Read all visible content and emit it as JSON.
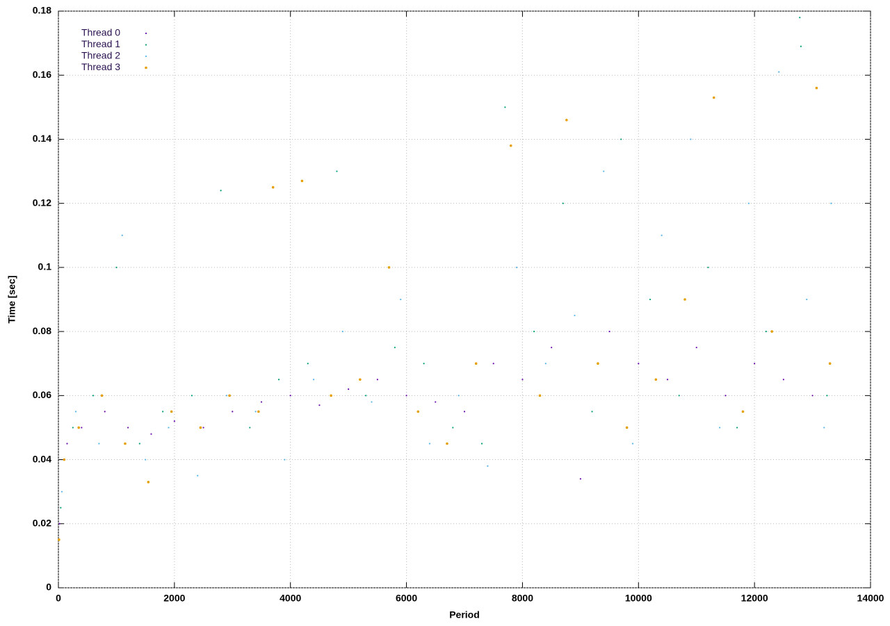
{
  "chart_data": {
    "type": "scatter",
    "xlabel": "Period",
    "ylabel": "Time [sec]",
    "xlim": [
      0,
      14000
    ],
    "ylim": [
      0,
      0.18
    ],
    "xticks": [
      0,
      2000,
      4000,
      6000,
      8000,
      10000,
      12000,
      14000
    ],
    "yticks": [
      0,
      0.02,
      0.04,
      0.06,
      0.08,
      0.1,
      0.12,
      0.14,
      0.16,
      0.18
    ],
    "grid": true,
    "legend": "top-left",
    "series": [
      {
        "name": "Thread 0",
        "color": "#6a0dad",
        "x": [
          20,
          150,
          400,
          800,
          1200,
          1600,
          2000,
          2500,
          3000,
          3500,
          4000,
          4500,
          5000,
          5500,
          6000,
          6500,
          7000,
          7500,
          8000,
          8500,
          9000,
          9500,
          10000,
          10500,
          11000,
          11500,
          12000,
          12500,
          13000,
          13300
        ],
        "y": [
          0.02,
          0.045,
          0.05,
          0.055,
          0.05,
          0.048,
          0.052,
          0.05,
          0.055,
          0.058,
          0.06,
          0.057,
          0.062,
          0.065,
          0.06,
          0.058,
          0.055,
          0.07,
          0.065,
          0.075,
          0.034,
          0.08,
          0.07,
          0.065,
          0.075,
          0.06,
          0.07,
          0.065,
          0.06,
          0.07
        ]
      },
      {
        "name": "Thread 1",
        "color": "#009e73",
        "x": [
          40,
          250,
          600,
          1000,
          1400,
          1800,
          2300,
          2800,
          3300,
          3800,
          4300,
          4800,
          5300,
          5800,
          6300,
          6800,
          7300,
          7700,
          8200,
          8700,
          9200,
          9700,
          10200,
          10700,
          11200,
          11700,
          12200,
          12780,
          12800,
          13250
        ],
        "y": [
          0.025,
          0.05,
          0.06,
          0.1,
          0.045,
          0.055,
          0.06,
          0.124,
          0.05,
          0.065,
          0.07,
          0.13,
          0.06,
          0.075,
          0.07,
          0.05,
          0.045,
          0.15,
          0.08,
          0.12,
          0.055,
          0.14,
          0.09,
          0.06,
          0.1,
          0.05,
          0.08,
          0.178,
          0.169,
          0.06
        ]
      },
      {
        "name": "Thread 2",
        "color": "#56b4e9",
        "x": [
          60,
          300,
          700,
          1100,
          1500,
          1900,
          2400,
          2900,
          3400,
          3900,
          4400,
          4900,
          5400,
          5900,
          6400,
          6900,
          7400,
          7900,
          8400,
          8900,
          9400,
          9900,
          10400,
          10900,
          11400,
          11900,
          12420,
          12900,
          13200,
          13320
        ],
        "y": [
          0.03,
          0.055,
          0.045,
          0.11,
          0.04,
          0.05,
          0.035,
          0.06,
          0.055,
          0.04,
          0.065,
          0.08,
          0.058,
          0.09,
          0.045,
          0.06,
          0.038,
          0.1,
          0.07,
          0.085,
          0.13,
          0.045,
          0.11,
          0.14,
          0.05,
          0.12,
          0.161,
          0.09,
          0.05,
          0.12
        ]
      },
      {
        "name": "Thread 3",
        "color": "#e69f00",
        "x": [
          10,
          100,
          350,
          750,
          1150,
          1550,
          1950,
          2450,
          2950,
          3450,
          3700,
          4200,
          4700,
          5200,
          5700,
          6200,
          6700,
          7200,
          7800,
          8300,
          8760,
          9300,
          9800,
          10300,
          10800,
          11300,
          11800,
          12300,
          13070,
          13300
        ],
        "y": [
          0.015,
          0.04,
          0.05,
          0.06,
          0.045,
          0.033,
          0.055,
          0.05,
          0.06,
          0.055,
          0.125,
          0.127,
          0.06,
          0.065,
          0.1,
          0.055,
          0.045,
          0.07,
          0.138,
          0.06,
          0.146,
          0.07,
          0.05,
          0.065,
          0.09,
          0.153,
          0.055,
          0.08,
          0.156,
          0.07
        ]
      }
    ]
  }
}
